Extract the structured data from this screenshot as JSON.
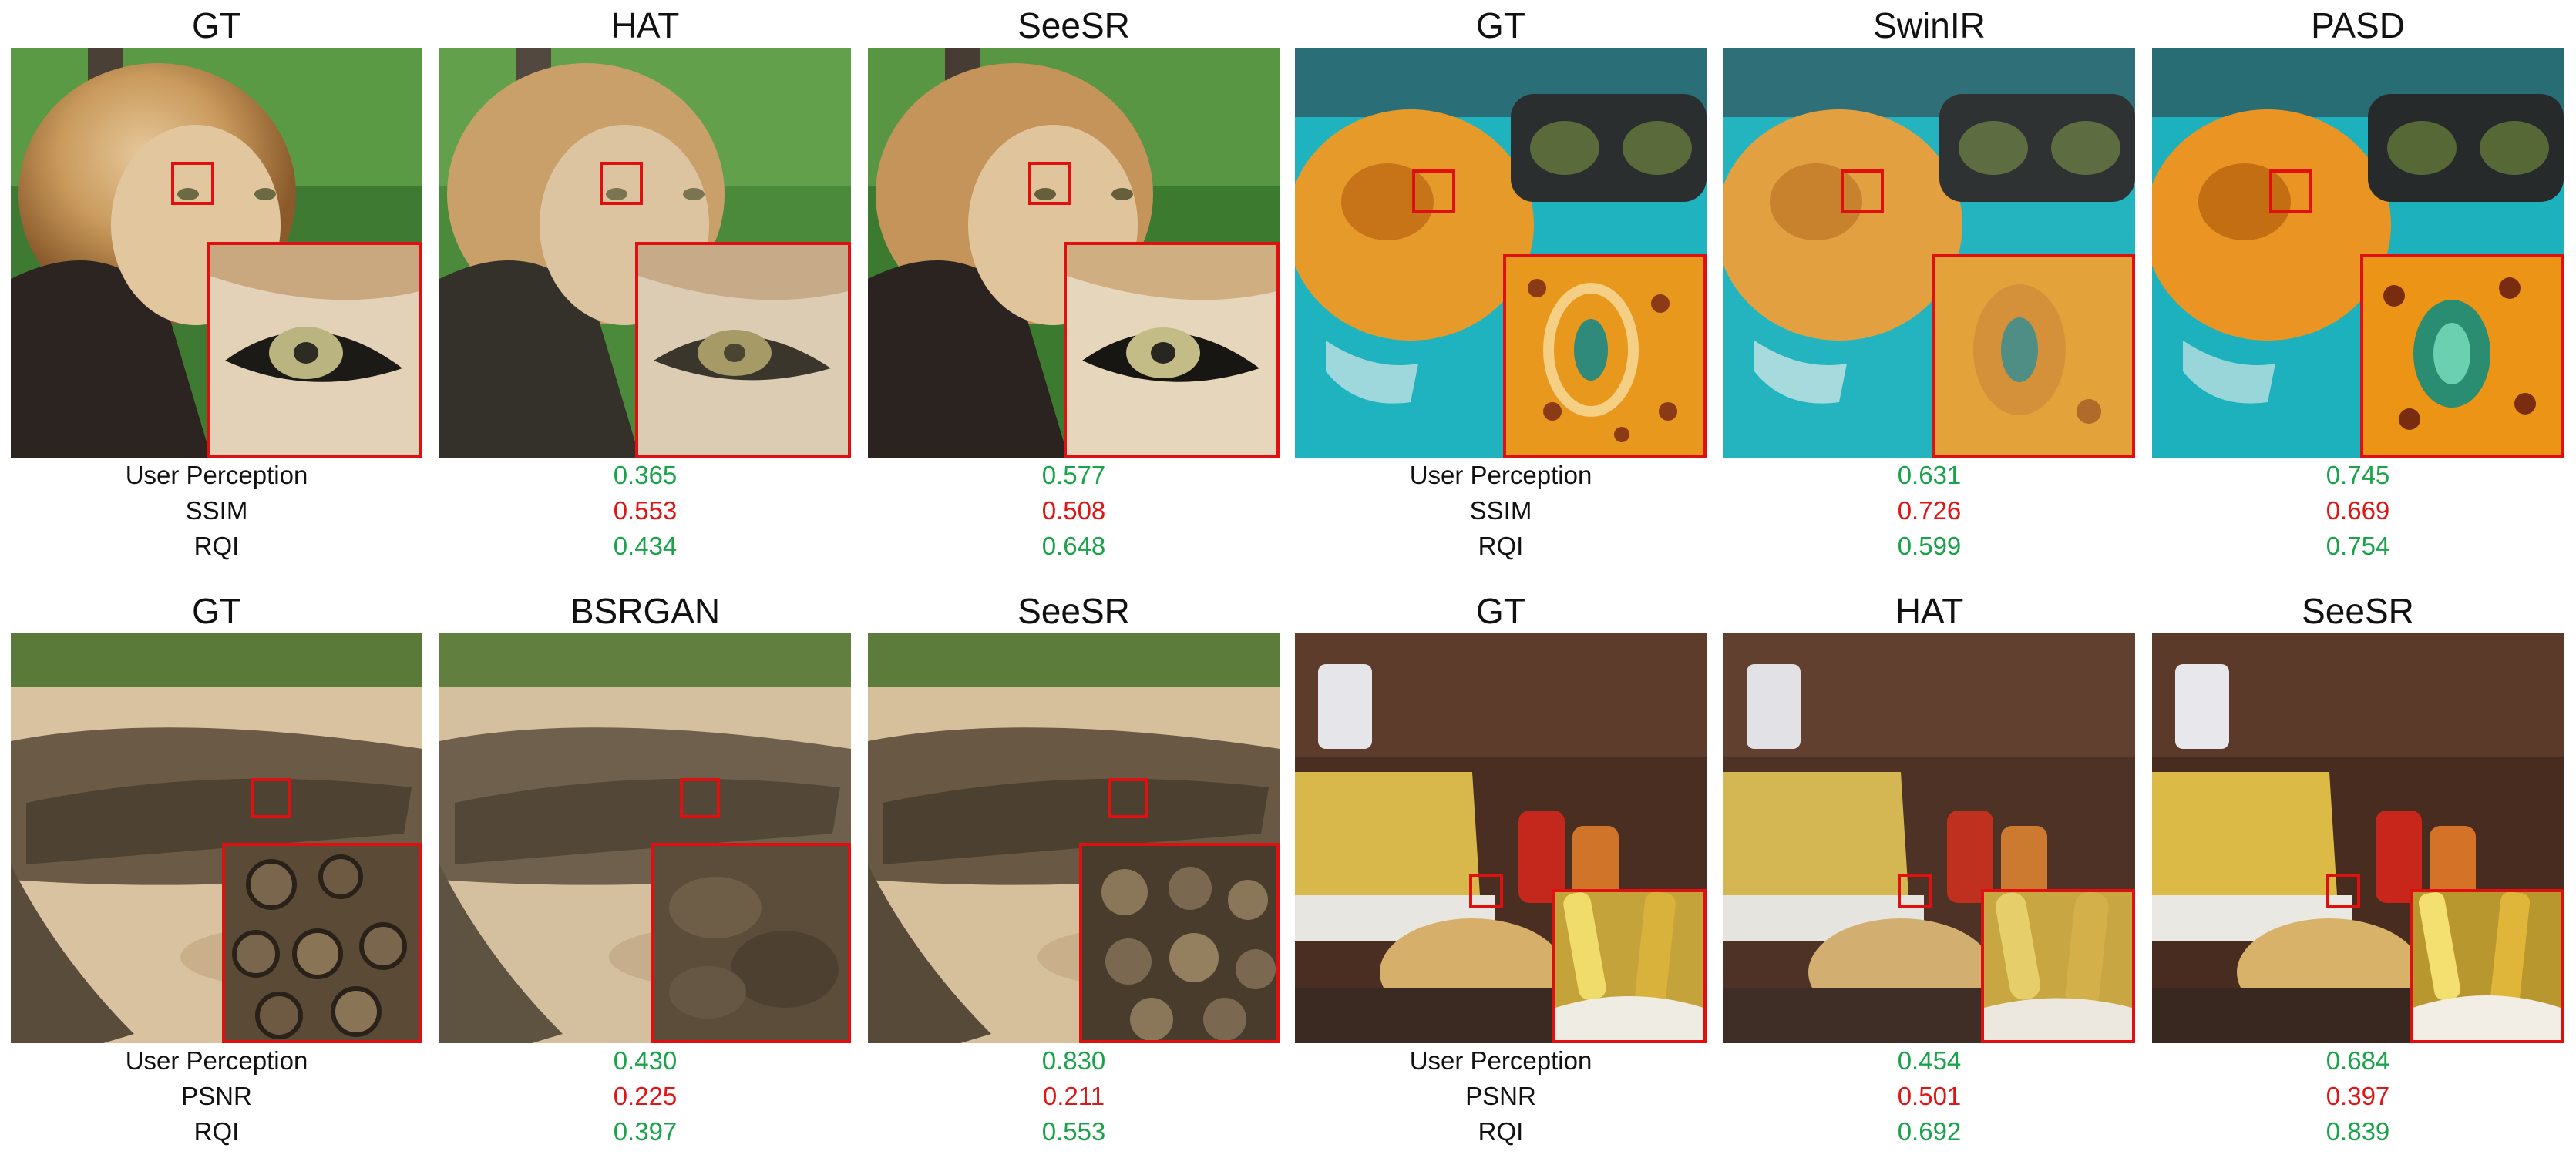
{
  "panels": [
    {
      "scene": "lion",
      "titles": [
        "GT",
        "HAT",
        "SeeSR"
      ],
      "metric_labels": [
        "User Perception",
        "SSIM",
        "RQI"
      ],
      "values": {
        "col1": [
          "0.365",
          "0.553",
          "0.434"
        ],
        "col2": [
          "0.577",
          "0.508",
          "0.648"
        ]
      },
      "value_status": [
        [
          "good",
          "bad",
          "good"
        ],
        [
          "good",
          "bad",
          "good"
        ]
      ]
    },
    {
      "scene": "pufferfish",
      "titles": [
        "GT",
        "SwinIR",
        "PASD"
      ],
      "metric_labels": [
        "User Perception",
        "SSIM",
        "RQI"
      ],
      "values": {
        "col1": [
          "0.631",
          "0.726",
          "0.599"
        ],
        "col2": [
          "0.745",
          "0.669",
          "0.754"
        ]
      },
      "value_status": [
        [
          "good",
          "bad",
          "good"
        ],
        [
          "good",
          "bad",
          "good"
        ]
      ]
    },
    {
      "scene": "crocodile",
      "titles": [
        "GT",
        "BSRGAN",
        "SeeSR"
      ],
      "metric_labels": [
        "User Perception",
        "PSNR",
        "RQI"
      ],
      "values": {
        "col1": [
          "0.430",
          "0.225",
          "0.397"
        ],
        "col2": [
          "0.830",
          "0.211",
          "0.553"
        ]
      },
      "value_status": [
        [
          "good",
          "bad",
          "good"
        ],
        [
          "good",
          "bad",
          "good"
        ]
      ]
    },
    {
      "scene": "fries",
      "titles": [
        "GT",
        "HAT",
        "SeeSR"
      ],
      "metric_labels": [
        "User Perception",
        "PSNR",
        "RQI"
      ],
      "values": {
        "col1": [
          "0.454",
          "0.501",
          "0.692"
        ],
        "col2": [
          "0.684",
          "0.397",
          "0.839"
        ]
      },
      "value_status": [
        [
          "good",
          "bad",
          "good"
        ],
        [
          "good",
          "bad",
          "good"
        ]
      ]
    }
  ],
  "colors": {
    "good": "#1aa34a",
    "bad": "#e01515",
    "highlight_box": "#e01010"
  }
}
